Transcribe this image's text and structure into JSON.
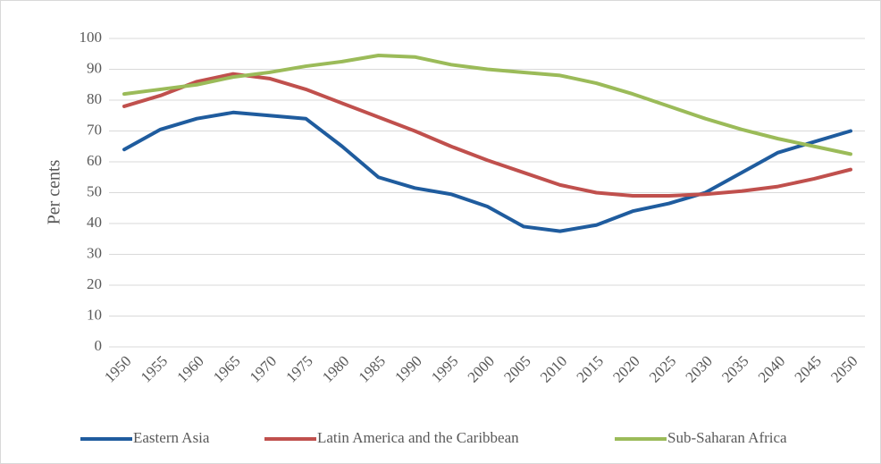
{
  "chart_data": {
    "type": "line",
    "y_label": "Per cents",
    "categories": [
      "1950",
      "1955",
      "1960",
      "1965",
      "1970",
      "1975",
      "1980",
      "1985",
      "1990",
      "1995",
      "2000",
      "2005",
      "2010",
      "2015",
      "2020",
      "2025",
      "2030",
      "2035",
      "2040",
      "2045",
      "2050"
    ],
    "series": [
      {
        "name": "Eastern Asia",
        "color": "#1f5c9e",
        "values": [
          64,
          70.5,
          74,
          76,
          75,
          74,
          65,
          55,
          51.5,
          49.5,
          45.5,
          39,
          37.5,
          39.5,
          44,
          46.5,
          50,
          56.5,
          63,
          66.5,
          70
        ]
      },
      {
        "name": "Latin America and the Caribbean",
        "color": "#c0504d",
        "values": [
          78,
          81.5,
          86,
          88.5,
          87,
          83.5,
          79,
          74.5,
          70,
          65,
          60.5,
          56.5,
          52.5,
          50,
          49,
          49,
          49.5,
          50.5,
          52,
          54.5,
          57.5
        ]
      },
      {
        "name": "Sub-Saharan Africa",
        "color": "#9bbb59",
        "values": [
          82,
          83.5,
          85,
          87.5,
          89,
          91,
          92.5,
          94.5,
          94,
          91.5,
          90,
          89,
          88,
          85.5,
          82,
          78,
          74,
          70.5,
          67.5,
          65,
          62.5
        ]
      }
    ],
    "ylim": [
      0,
      100
    ],
    "yticks": [
      0,
      10,
      20,
      30,
      40,
      50,
      60,
      70,
      80,
      90,
      100
    ],
    "grid": true,
    "legend": "bottom"
  }
}
